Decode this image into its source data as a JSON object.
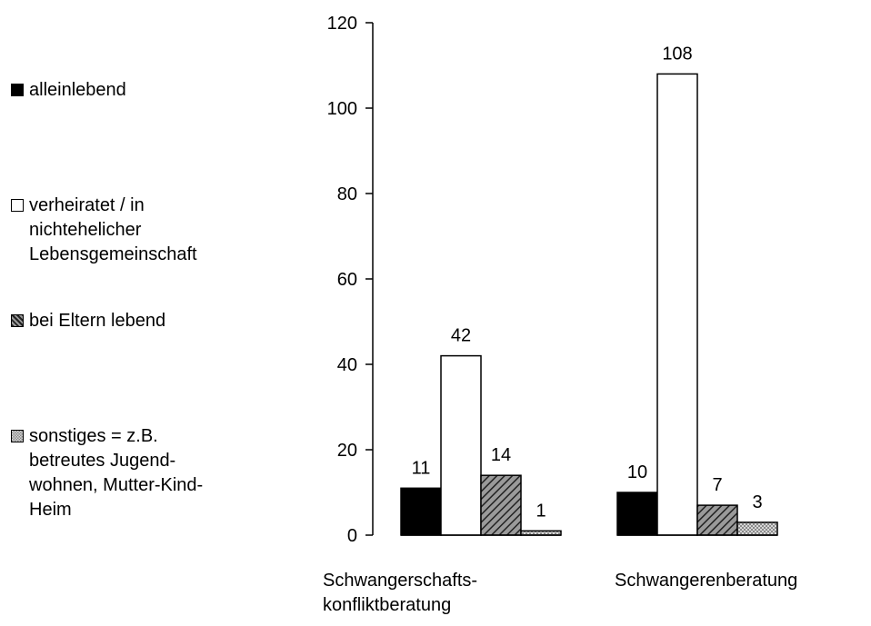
{
  "chart_data": {
    "type": "bar",
    "categories": [
      "Schwangerschafts-\nkonfliktberatung",
      "Schwangerenberatung"
    ],
    "series": [
      {
        "name": "alleinlebend",
        "values": [
          11,
          10
        ],
        "fill": "#000000",
        "pattern": "solid"
      },
      {
        "name": "verheiratet / in\nnichtehelicher\nLebensgemeinschaft",
        "values": [
          42,
          108
        ],
        "fill": "#ffffff",
        "pattern": "none"
      },
      {
        "name": "bei Eltern lebend",
        "values": [
          14,
          7
        ],
        "fill": "#555555",
        "pattern": "diagonal-hatch"
      },
      {
        "name": "sonstiges = z.B.\nbetreutes Jugend-\nwohnen, Mutter-Kind-\nHeim",
        "values": [
          1,
          3
        ],
        "fill": "#cccccc",
        "pattern": "dotted"
      }
    ],
    "yticks": [
      0,
      20,
      40,
      60,
      80,
      100,
      120
    ],
    "ylim": [
      0,
      120
    ],
    "grid": false,
    "legend_position": "left",
    "title": "",
    "xlabel": "",
    "ylabel": ""
  }
}
